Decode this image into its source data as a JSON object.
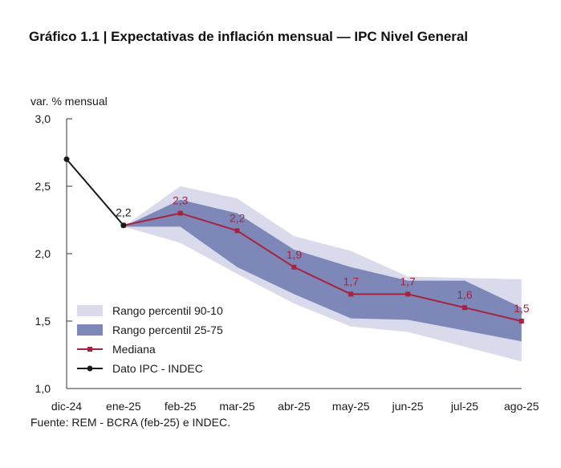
{
  "title": "Gráfico 1.1 | Expectativas de inflación mensual — IPC Nivel General",
  "source": "Fuente: REM - BCRA (feb-25) e INDEC.",
  "colors": {
    "band_90_10": "#d9dbec",
    "band_25_75": "#7e88b8",
    "mediana": "#a6223f",
    "ipc": "#1a1a1a",
    "mediana_label": "#a6223f",
    "axis": "#333333"
  },
  "chart_data": {
    "type": "line",
    "ylabel": "var. % mensual",
    "ylim": [
      1.0,
      3.0
    ],
    "yticks": [
      "1,0",
      "1,5",
      "2,0",
      "2,5",
      "3,0"
    ],
    "ytick_values": [
      1.0,
      1.5,
      2.0,
      2.5,
      3.0
    ],
    "categories": [
      "dic-24",
      "ene-25",
      "feb-25",
      "mar-25",
      "abr-25",
      "may-25",
      "jun-25",
      "jul-25",
      "ago-25"
    ],
    "series": [
      {
        "name": "Rango percentil 90-10",
        "kind": "band",
        "x": [
          "ene-25",
          "feb-25",
          "mar-25",
          "abr-25",
          "may-25",
          "jun-25",
          "jul-25",
          "ago-25"
        ],
        "low": [
          2.2,
          2.08,
          1.85,
          1.63,
          1.46,
          1.42,
          1.31,
          1.2
        ],
        "high": [
          2.2,
          2.5,
          2.41,
          2.13,
          2.02,
          1.83,
          1.82,
          1.81
        ]
      },
      {
        "name": "Rango percentil 25-75",
        "kind": "band",
        "x": [
          "ene-25",
          "feb-25",
          "mar-25",
          "abr-25",
          "may-25",
          "jun-25",
          "jul-25",
          "ago-25"
        ],
        "low": [
          2.2,
          2.2,
          1.9,
          1.7,
          1.52,
          1.51,
          1.43,
          1.35
        ],
        "high": [
          2.2,
          2.4,
          2.3,
          2.03,
          1.9,
          1.8,
          1.8,
          1.6
        ]
      },
      {
        "name": "Mediana",
        "kind": "line",
        "x": [
          "ene-25",
          "feb-25",
          "mar-25",
          "abr-25",
          "may-25",
          "jun-25",
          "jul-25",
          "ago-25"
        ],
        "values": [
          2.21,
          2.3,
          2.17,
          1.9,
          1.7,
          1.7,
          1.6,
          1.5
        ],
        "labels": [
          "",
          "2,3",
          "2,2",
          "1,9",
          "1,7",
          "1,7",
          "1,6",
          "1,5"
        ]
      },
      {
        "name": "Dato IPC - INDEC",
        "kind": "line",
        "x": [
          "dic-24",
          "ene-25"
        ],
        "values": [
          2.7,
          2.21
        ],
        "labels": [
          "",
          "2,2"
        ]
      }
    ],
    "legend": [
      "Rango percentil 90-10",
      "Rango percentil 25-75",
      "Mediana",
      "Dato IPC - INDEC"
    ],
    "legend_position": "bottom-left",
    "grid": false
  }
}
